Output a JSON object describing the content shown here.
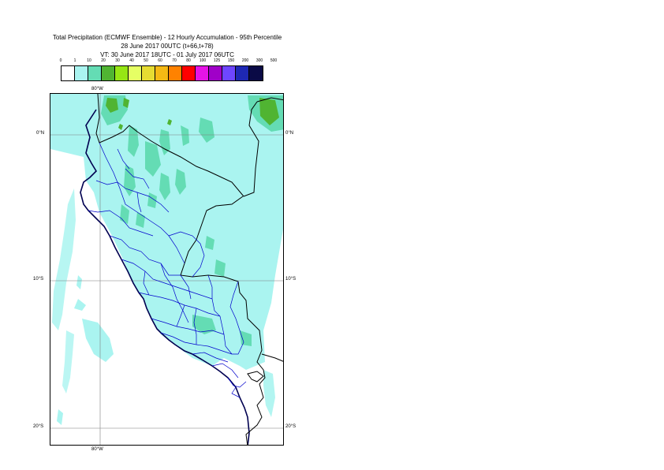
{
  "header": {
    "line1": "Total Precipitation (ECMWF Ensemble) - 12 Hourly Accumulation - 95th Percentile",
    "line2": "28 June 2017 00UTC (t+66,t+78)",
    "line3": "VT: 30 June 2017 18UTC - 01 July 2017 06UTC"
  },
  "legend": {
    "labels": [
      "0",
      "1",
      "10",
      "20",
      "30",
      "40",
      "50",
      "60",
      "70",
      "80",
      "100",
      "125",
      "150",
      "200",
      "300",
      "500"
    ],
    "colors": [
      "#ffffff",
      "#aaf4f0",
      "#64dcb4",
      "#50b432",
      "#96e614",
      "#e6ff64",
      "#e6dc32",
      "#f5b914",
      "#ff8200",
      "#ff0000",
      "#e614e6",
      "#a000c8",
      "#6e46ff",
      "#1e28b4",
      "#0a0a46"
    ]
  },
  "map": {
    "lon_label_top": "80°W",
    "lon_label_bottom": "80°W",
    "lat_labels_left": [
      "0°N",
      "10°S",
      "20°S"
    ],
    "lat_labels_right": [
      "0°N",
      "10°S",
      "20°S"
    ],
    "colors": {
      "coast": "#000050",
      "border": "#000000",
      "admin": "#0000cc",
      "grid": "#7f7f7f"
    }
  }
}
